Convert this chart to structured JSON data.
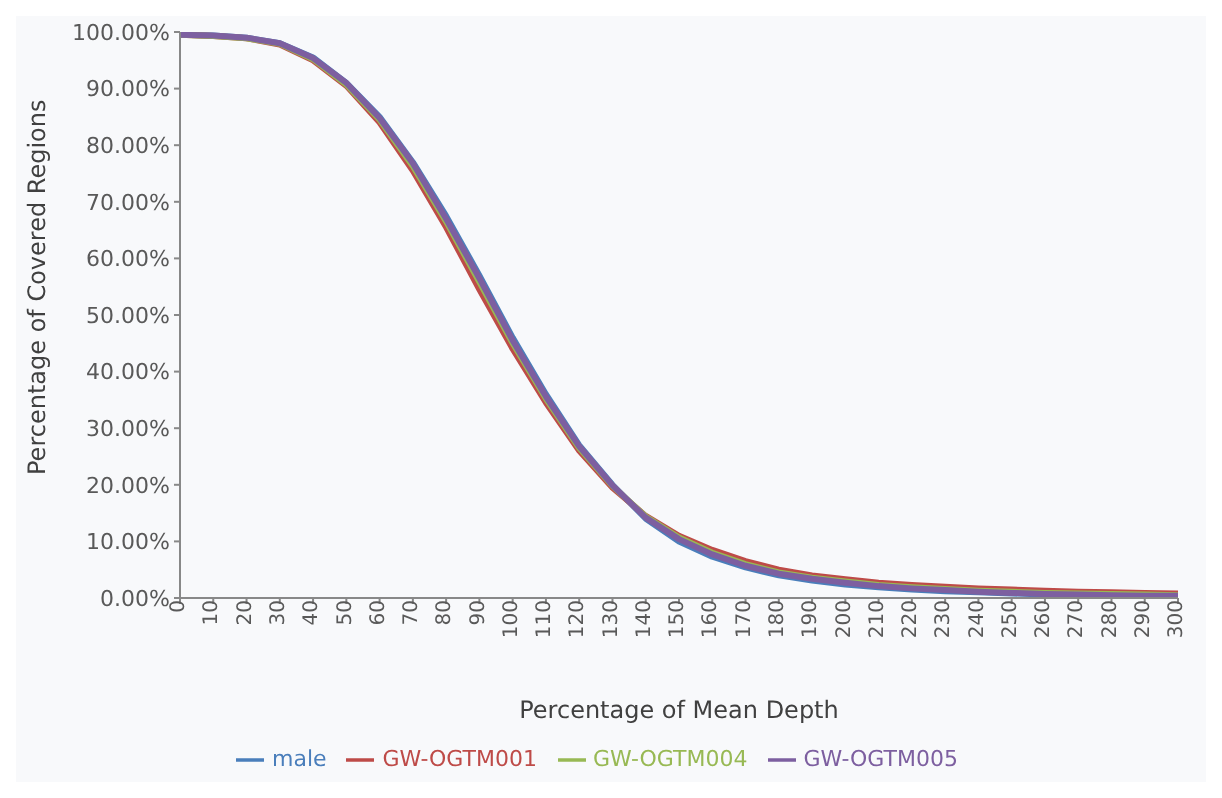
{
  "chart_data": {
    "type": "line",
    "xlabel": "Percentage of Mean Depth",
    "ylabel": "Percentage of Covered Regions",
    "x": [
      0,
      10,
      20,
      30,
      40,
      50,
      60,
      70,
      80,
      90,
      100,
      110,
      120,
      130,
      140,
      150,
      160,
      170,
      180,
      190,
      200,
      210,
      220,
      230,
      240,
      250,
      260,
      270,
      280,
      290,
      300
    ],
    "series": [
      {
        "name": "male",
        "color": "#4a7ebb",
        "values": [
          99.5,
          99.4,
          99,
          98,
          95.5,
          91,
          85,
          77,
          67.5,
          57,
          46,
          36,
          27,
          20,
          14,
          10,
          7.3,
          5.4,
          4,
          3.1,
          2.4,
          1.9,
          1.5,
          1.2,
          1,
          0.8,
          0.6,
          0.5,
          null,
          null,
          null
        ]
      },
      {
        "name": "GW-OGTM001",
        "color": "#be4b48",
        "values": [
          99.5,
          99.3,
          98.9,
          97.8,
          95,
          90.5,
          84,
          75.5,
          65.5,
          54.5,
          44,
          34.5,
          26,
          19.5,
          14.5,
          11,
          8.5,
          6.5,
          5,
          4,
          3.3,
          2.7,
          2.3,
          2,
          1.7,
          1.5,
          1.3,
          1.1,
          1,
          0.9,
          0.8
        ]
      },
      {
        "name": "GW-OGTM004",
        "color": "#98b954",
        "values": [
          99.5,
          99.3,
          98.9,
          97.9,
          95.2,
          90.7,
          84.5,
          76.3,
          66.5,
          55.8,
          45,
          35.2,
          26.5,
          19.8,
          14.4,
          10.7,
          8,
          6,
          4.5,
          3.6,
          2.9,
          2.3,
          1.9,
          1.6,
          1.3,
          1.1,
          0.9,
          0.8,
          0.7,
          0.6,
          0.5
        ]
      },
      {
        "name": "GW-OGTM005",
        "color": "#7d5fa0",
        "values": [
          99.5,
          99.4,
          99,
          98,
          95.4,
          91,
          84.8,
          76.8,
          67,
          56.5,
          45.5,
          35.6,
          26.8,
          19.9,
          14.2,
          10.4,
          7.7,
          5.7,
          4.3,
          3.4,
          2.7,
          2.1,
          1.7,
          1.4,
          1.1,
          0.9,
          0.7,
          0.6,
          0.5,
          0.4,
          0.4
        ]
      }
    ],
    "xlim": [
      0,
      300
    ],
    "xticks": [
      0,
      10,
      20,
      30,
      40,
      50,
      60,
      70,
      80,
      90,
      100,
      110,
      120,
      130,
      140,
      150,
      160,
      170,
      180,
      190,
      200,
      210,
      220,
      230,
      240,
      250,
      260,
      270,
      280,
      290,
      300
    ],
    "ylim": [
      0,
      100
    ],
    "yticks": [
      {
        "value": 0,
        "label": "0.00%"
      },
      {
        "value": 10,
        "label": "10.00%"
      },
      {
        "value": 20,
        "label": "20.00%"
      },
      {
        "value": 30,
        "label": "30.00%"
      },
      {
        "value": 40,
        "label": "40.00%"
      },
      {
        "value": 50,
        "label": "50.00%"
      },
      {
        "value": 60,
        "label": "60.00%"
      },
      {
        "value": 70,
        "label": "70.00%"
      },
      {
        "value": 80,
        "label": "80.00%"
      },
      {
        "value": 90,
        "label": "90.00%"
      },
      {
        "value": 100,
        "label": "100.00%"
      }
    ],
    "grid": false,
    "legend": "bottom",
    "marker": "none",
    "line_style": "solid"
  }
}
